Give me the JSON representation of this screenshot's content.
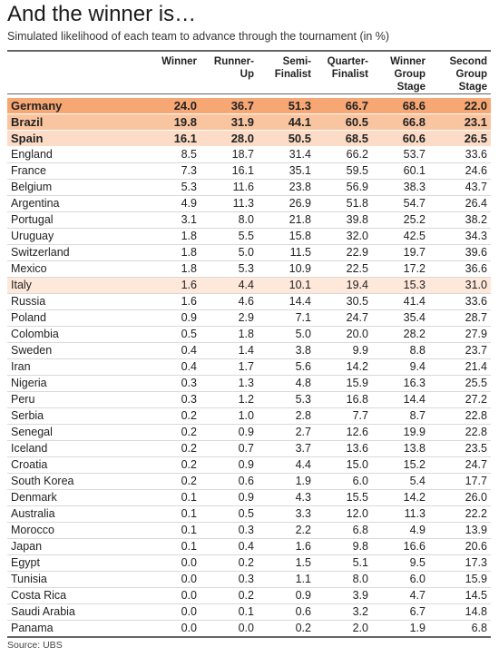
{
  "title": "And the winner is…",
  "subtitle": "Simulated likelihood of each team to advance through the tournament (in %)",
  "source": "Source: UBS",
  "colors": {
    "highlight_1": "#f7a774",
    "highlight_2": "#f9c4a0",
    "highlight_3": "#fcdcc6",
    "highlight_4": "#fde8da"
  },
  "chart_data": {
    "type": "table",
    "title": "And the winner is…",
    "subtitle": "Simulated likelihood of each team to advance through the tournament (in %)",
    "columns": [
      "",
      "Winner",
      "Runner-Up",
      "Semi-\nFinalist",
      "Quarter-\nFinalist",
      "Winner\nGroup\nStage",
      "Second\nGroup\nStage"
    ],
    "highlighted_rows": [
      "Germany",
      "Brazil",
      "Spain",
      "Italy"
    ],
    "rows": [
      {
        "team": "Germany",
        "values": [
          "24.0",
          "36.7",
          "51.3",
          "66.7",
          "68.6",
          "22.0"
        ]
      },
      {
        "team": "Brazil",
        "values": [
          "19.8",
          "31.9",
          "44.1",
          "60.5",
          "66.8",
          "23.1"
        ]
      },
      {
        "team": "Spain",
        "values": [
          "16.1",
          "28.0",
          "50.5",
          "68.5",
          "60.6",
          "26.5"
        ]
      },
      {
        "team": "England",
        "values": [
          "8.5",
          "18.7",
          "31.4",
          "66.2",
          "53.7",
          "33.6"
        ]
      },
      {
        "team": "France",
        "values": [
          "7.3",
          "16.1",
          "35.1",
          "59.5",
          "60.1",
          "24.6"
        ]
      },
      {
        "team": "Belgium",
        "values": [
          "5.3",
          "11.6",
          "23.8",
          "56.9",
          "38.3",
          "43.7"
        ]
      },
      {
        "team": "Argentina",
        "values": [
          "4.9",
          "11.3",
          "26.9",
          "51.8",
          "54.7",
          "26.4"
        ]
      },
      {
        "team": "Portugal",
        "values": [
          "3.1",
          "8.0",
          "21.8",
          "39.8",
          "25.2",
          "38.2"
        ]
      },
      {
        "team": "Uruguay",
        "values": [
          "1.8",
          "5.5",
          "15.8",
          "32.0",
          "42.5",
          "34.3"
        ]
      },
      {
        "team": "Switzerland",
        "values": [
          "1.8",
          "5.0",
          "11.5",
          "22.9",
          "19.7",
          "39.6"
        ]
      },
      {
        "team": "Mexico",
        "values": [
          "1.8",
          "5.3",
          "10.9",
          "22.5",
          "17.2",
          "36.6"
        ]
      },
      {
        "team": "Italy",
        "values": [
          "1.6",
          "4.4",
          "10.1",
          "19.4",
          "15.3",
          "31.0"
        ]
      },
      {
        "team": "Russia",
        "values": [
          "1.6",
          "4.6",
          "14.4",
          "30.5",
          "41.4",
          "33.6"
        ]
      },
      {
        "team": "Poland",
        "values": [
          "0.9",
          "2.9",
          "7.1",
          "24.7",
          "35.4",
          "28.7"
        ]
      },
      {
        "team": "Colombia",
        "values": [
          "0.5",
          "1.8",
          "5.0",
          "20.0",
          "28.2",
          "27.9"
        ]
      },
      {
        "team": "Sweden",
        "values": [
          "0.4",
          "1.4",
          "3.8",
          "9.9",
          "8.8",
          "23.7"
        ]
      },
      {
        "team": "Iran",
        "values": [
          "0.4",
          "1.7",
          "5.6",
          "14.2",
          "9.4",
          "21.4"
        ]
      },
      {
        "team": "Nigeria",
        "values": [
          "0.3",
          "1.3",
          "4.8",
          "15.9",
          "16.3",
          "25.5"
        ]
      },
      {
        "team": "Peru",
        "values": [
          "0.3",
          "1.2",
          "5.3",
          "16.8",
          "14.4",
          "27.2"
        ]
      },
      {
        "team": "Serbia",
        "values": [
          "0.2",
          "1.0",
          "2.8",
          "7.7",
          "8.7",
          "22.8"
        ]
      },
      {
        "team": "Senegal",
        "values": [
          "0.2",
          "0.9",
          "2.7",
          "12.6",
          "19.9",
          "22.8"
        ]
      },
      {
        "team": "Iceland",
        "values": [
          "0.2",
          "0.7",
          "3.7",
          "13.6",
          "13.8",
          "23.5"
        ]
      },
      {
        "team": "Croatia",
        "values": [
          "0.2",
          "0.9",
          "4.4",
          "15.0",
          "15.2",
          "24.7"
        ]
      },
      {
        "team": "South Korea",
        "values": [
          "0.2",
          "0.6",
          "1.9",
          "6.0",
          "5.4",
          "17.7"
        ]
      },
      {
        "team": "Denmark",
        "values": [
          "0.1",
          "0.9",
          "4.3",
          "15.5",
          "14.2",
          "26.0"
        ]
      },
      {
        "team": "Australia",
        "values": [
          "0.1",
          "0.5",
          "3.3",
          "12.0",
          "11.3",
          "22.2"
        ]
      },
      {
        "team": "Morocco",
        "values": [
          "0.1",
          "0.3",
          "2.2",
          "6.8",
          "4.9",
          "13.9"
        ]
      },
      {
        "team": "Japan",
        "values": [
          "0.1",
          "0.4",
          "1.6",
          "9.8",
          "16.6",
          "20.6"
        ]
      },
      {
        "team": "Egypt",
        "values": [
          "0.0",
          "0.2",
          "1.5",
          "5.1",
          "9.5",
          "17.3"
        ]
      },
      {
        "team": "Tunisia",
        "values": [
          "0.0",
          "0.3",
          "1.1",
          "8.0",
          "6.0",
          "15.9"
        ]
      },
      {
        "team": "Costa Rica",
        "values": [
          "0.0",
          "0.2",
          "0.9",
          "3.9",
          "4.7",
          "14.5"
        ]
      },
      {
        "team": "Saudi Arabia",
        "values": [
          "0.0",
          "0.1",
          "0.6",
          "3.2",
          "6.7",
          "14.8"
        ]
      },
      {
        "team": "Panama",
        "values": [
          "0.0",
          "0.0",
          "0.2",
          "2.0",
          "1.9",
          "6.8"
        ]
      }
    ]
  }
}
